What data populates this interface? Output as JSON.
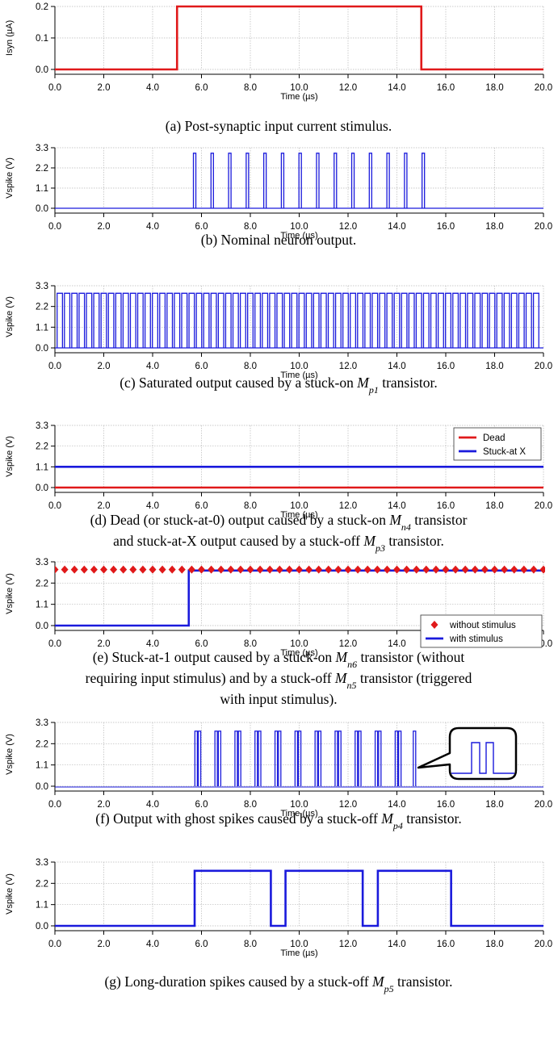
{
  "chart_data": [
    {
      "type": "line",
      "xlabel": "Time (µs)",
      "ylabel": "Isyn (µA)",
      "xlim": [
        0,
        20
      ],
      "ylim": [
        0,
        0.2
      ],
      "x_ticks": [
        "0.0",
        "2.0",
        "4.0",
        "6.0",
        "8.0",
        "10.0",
        "12.0",
        "14.0",
        "16.0",
        "18.0",
        "20.0"
      ],
      "y_ticks": [
        "0.0",
        "0.1",
        "0.2"
      ],
      "grid": true,
      "series": [
        {
          "color": "#e0191a",
          "x": [
            0,
            5.0,
            5.0,
            15.0,
            15.0,
            20.0
          ],
          "y": [
            0,
            0,
            0.2,
            0.2,
            0,
            0
          ]
        }
      ],
      "caption": {
        "parts": [
          {
            "t": "(a) Post-synaptic input current stimulus."
          }
        ]
      }
    },
    {
      "type": "line",
      "xlabel": "Time (µs)",
      "ylabel": "Vspike (V)",
      "xlim": [
        0,
        20
      ],
      "ylim": [
        0,
        3.3
      ],
      "x_ticks": [
        "0.0",
        "2.0",
        "4.0",
        "6.0",
        "8.0",
        "10.0",
        "12.0",
        "14.0",
        "16.0",
        "18.0",
        "20.0"
      ],
      "y_ticks": [
        "0.0",
        "1.1",
        "2.2",
        "3.3"
      ],
      "grid": true,
      "series": [
        {
          "color": "#1a1adc",
          "spikes": [
            5.72,
            6.44,
            7.16,
            7.88,
            8.6,
            9.32,
            10.04,
            10.76,
            11.48,
            12.2,
            12.92,
            13.64,
            14.36,
            15.08
          ],
          "spike_height": 3.0,
          "spike_width": 0.05
        }
      ],
      "caption": {
        "parts": [
          {
            "t": "(b) Nominal neuron output."
          }
        ]
      }
    },
    {
      "type": "line",
      "xlabel": "Time (µs)",
      "ylabel": "Vspike (V)",
      "xlim": [
        0,
        20
      ],
      "ylim": [
        0,
        3.3
      ],
      "x_ticks": [
        "0.0",
        "2.0",
        "4.0",
        "6.0",
        "8.0",
        "10.0",
        "12.0",
        "14.0",
        "16.0",
        "18.0",
        "20.0"
      ],
      "y_ticks": [
        "0.0",
        "1.1",
        "2.2",
        "3.3"
      ],
      "grid": true,
      "series": [
        {
          "color": "#1a1adc",
          "spikes": [
            0.2,
            0.5,
            0.8,
            1.1,
            1.4,
            1.7,
            2.0,
            2.3,
            2.6,
            2.9,
            3.2,
            3.5,
            3.8,
            4.1,
            4.4,
            4.7,
            5.0,
            5.3,
            5.6,
            5.9,
            6.2,
            6.5,
            6.8,
            7.1,
            7.4,
            7.7,
            8.0,
            8.3,
            8.6,
            8.9,
            9.2,
            9.5,
            9.8,
            10.1,
            10.4,
            10.7,
            11.0,
            11.3,
            11.6,
            11.9,
            12.2,
            12.5,
            12.8,
            13.1,
            13.4,
            13.7,
            14.0,
            14.3,
            14.6,
            14.9,
            15.2,
            15.5,
            15.8,
            16.1,
            16.4,
            16.7,
            17.0,
            17.3,
            17.6,
            17.9,
            18.2,
            18.5,
            18.8,
            19.1,
            19.4,
            19.7
          ],
          "spike_height": 2.9,
          "spike_width": 0.11
        }
      ],
      "caption": {
        "parts": [
          {
            "t": "(c) Saturated output caused by a stuck-on "
          },
          {
            "t": "M",
            "i": true
          },
          {
            "t": "p1",
            "sub": true
          },
          {
            "t": " transistor."
          }
        ]
      }
    },
    {
      "type": "line",
      "xlabel": "Time (µs)",
      "ylabel": "Vspike (V)",
      "xlim": [
        0,
        20
      ],
      "ylim": [
        0,
        3.3
      ],
      "x_ticks": [
        "0.0",
        "2.0",
        "4.0",
        "6.0",
        "8.0",
        "10.0",
        "12.0",
        "14.0",
        "16.0",
        "18.0",
        "20.0"
      ],
      "y_ticks": [
        "0.0",
        "1.1",
        "2.2",
        "3.3"
      ],
      "grid": true,
      "legend": "top-right",
      "series": [
        {
          "name": "Stuck-at X",
          "color": "#1a1adc",
          "x": [
            0,
            20
          ],
          "y": [
            1.1,
            1.1
          ]
        },
        {
          "name": "Dead",
          "color": "#e0191a",
          "x": [
            0,
            20
          ],
          "y": [
            0.0,
            0.0
          ]
        }
      ],
      "legend_order": [
        "Dead",
        "Stuck-at X"
      ],
      "caption": {
        "lines": [
          [
            {
              "t": "(d) Dead (or stuck-at-0) output caused by a stuck-on "
            },
            {
              "t": "M",
              "i": true
            },
            {
              "t": "n4",
              "sub": true
            },
            {
              "t": " transistor"
            }
          ],
          [
            {
              "t": "and stuck-at-X output caused by a stuck-off "
            },
            {
              "t": "M",
              "i": true
            },
            {
              "t": "p3",
              "sub": true
            },
            {
              "t": " transistor."
            }
          ]
        ]
      }
    },
    {
      "type": "line",
      "xlabel": "Time (µs)",
      "ylabel": "Vspike (V)",
      "xlim": [
        0,
        20
      ],
      "ylim": [
        0,
        3.3
      ],
      "x_ticks": [
        "0.0",
        "2.0",
        "4.0",
        "6.0",
        "8.0",
        "10.0",
        "12.0",
        "14.0",
        "16.0",
        "18.0",
        "20.0"
      ],
      "y_ticks": [
        "0.0",
        "1.1",
        "2.2",
        "3.3"
      ],
      "grid": true,
      "legend": "bottom-right",
      "series": [
        {
          "name": "with stimulus",
          "color": "#1a1adc",
          "x": [
            0,
            5.48,
            5.48,
            20
          ],
          "y": [
            0,
            0,
            2.85,
            2.85
          ]
        },
        {
          "name": "without stimulus",
          "color": "#e0191a",
          "marker": "diamond",
          "x": [
            0,
            0.4,
            0.8,
            1.2,
            1.6,
            2.0,
            2.4,
            2.8,
            3.2,
            3.6,
            4.0,
            4.4,
            4.8,
            5.2,
            5.6,
            6.0,
            6.4,
            6.8,
            7.2,
            7.6,
            8.0,
            8.4,
            8.8,
            9.2,
            9.6,
            10.0,
            10.4,
            10.8,
            11.2,
            11.6,
            12.0,
            12.4,
            12.8,
            13.2,
            13.6,
            14.0,
            14.4,
            14.8,
            15.2,
            15.6,
            16.0,
            16.4,
            16.8,
            17.2,
            17.6,
            18.0,
            18.4,
            18.8,
            19.2,
            19.6,
            20.0
          ],
          "y_value": 2.9
        }
      ],
      "legend_order": [
        "without stimulus",
        "with stimulus"
      ],
      "caption": {
        "lines": [
          [
            {
              "t": "(e) Stuck-at-1 output caused by a stuck-on "
            },
            {
              "t": "M",
              "i": true
            },
            {
              "t": "n6",
              "sub": true
            },
            {
              "t": " transistor (without"
            }
          ],
          [
            {
              "t": "requiring input stimulus) and by a stuck-off "
            },
            {
              "t": "M",
              "i": true
            },
            {
              "t": "n5",
              "sub": true
            },
            {
              "t": " transistor (triggered"
            }
          ],
          [
            {
              "t": "with input stimulus)."
            }
          ]
        ]
      }
    },
    {
      "type": "line",
      "xlabel": "Time (µs)",
      "ylabel": "Vspike (V)",
      "xlim": [
        0,
        20
      ],
      "ylim": [
        0,
        3.3
      ],
      "x_ticks": [
        "0.0",
        "2.0",
        "4.0",
        "6.0",
        "8.0",
        "10.0",
        "12.0",
        "14.0",
        "16.0",
        "18.0",
        "20.0"
      ],
      "y_ticks": [
        "0.0",
        "1.1",
        "2.2",
        "3.3"
      ],
      "grid": true,
      "series": [
        {
          "color": "#1a1adc",
          "double_spikes": [
            5.78,
            6.6,
            7.42,
            8.24,
            9.06,
            9.88,
            10.7,
            11.52,
            12.34,
            13.16,
            13.98
          ],
          "single_spikes": [
            14.72
          ],
          "spike_height": 2.85,
          "spike_width": 0.05,
          "spike_gap": 0.14
        }
      ],
      "caption": {
        "parts": [
          {
            "t": "(f) Output with ghost spikes caused by a stuck-off "
          },
          {
            "t": "M",
            "i": true
          },
          {
            "t": "p4",
            "sub": true
          },
          {
            "t": " transistor."
          }
        ]
      }
    },
    {
      "type": "line",
      "xlabel": "Time (µs)",
      "ylabel": "Vspike (V)",
      "xlim": [
        0,
        20
      ],
      "ylim": [
        0,
        3.3
      ],
      "x_ticks": [
        "0.0",
        "2.0",
        "4.0",
        "6.0",
        "8.0",
        "10.0",
        "12.0",
        "14.0",
        "16.0",
        "18.0",
        "20.0"
      ],
      "y_ticks": [
        "0.0",
        "1.1",
        "2.2",
        "3.3"
      ],
      "grid": true,
      "series": [
        {
          "color": "#1a1adc",
          "x": [
            0,
            5.72,
            5.72,
            8.84,
            8.84,
            9.44,
            9.44,
            12.6,
            12.6,
            13.22,
            13.22,
            16.22,
            16.22,
            20
          ],
          "y": [
            0,
            0,
            2.85,
            2.85,
            0,
            0,
            2.85,
            2.85,
            0,
            0,
            2.85,
            2.85,
            0,
            0
          ]
        }
      ],
      "caption": {
        "parts": [
          {
            "t": "(g) Long-duration spikes caused by a stuck-off "
          },
          {
            "t": "M",
            "i": true
          },
          {
            "t": "p5",
            "sub": true
          },
          {
            "t": " transistor."
          }
        ]
      }
    }
  ]
}
